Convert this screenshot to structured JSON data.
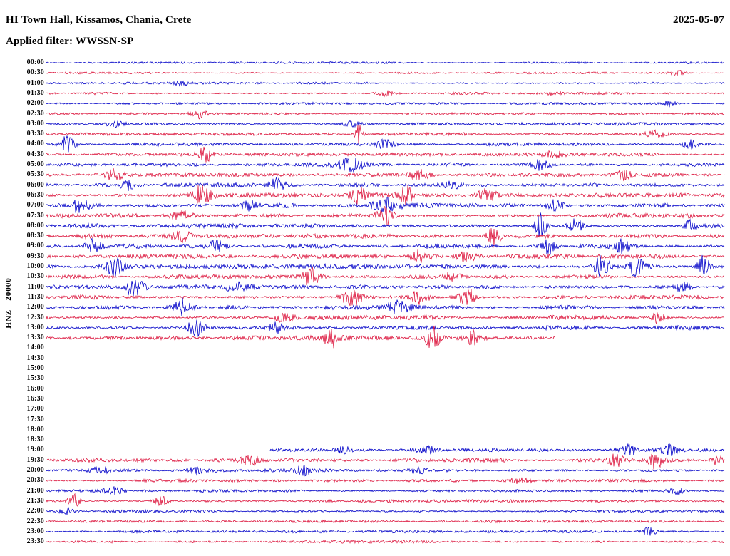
{
  "header": {
    "station_title": "HI Town Hall, Kissamos, Chania, Crete",
    "date": "2025-05-07",
    "filter_label": "Applied filter: WWSSN-SP"
  },
  "colors": {
    "trace_blue": "#0000c8",
    "trace_red": "#dc143c",
    "text": "#000000",
    "background": "#ffffff"
  },
  "chart_data": {
    "type": "line",
    "subtype": "helicorder-seismogram-dayplot",
    "title": "HI Town Hall, Kissamos, Chania, Crete",
    "date": "2025-05-07",
    "filter": "WWSSN-SP",
    "channel": "HNZ",
    "scale": "20000",
    "ylabel": "HNZ - 20000",
    "xlabel": "",
    "row_interval_minutes": 30,
    "legend": "alternating blue/red traces, one row per 30 minutes; blank rows 14:00-18:30 indicate no data",
    "rows": [
      {
        "time": "00:00",
        "color": "blue",
        "start": 0,
        "end": 1,
        "noise": 0.9,
        "bursts": []
      },
      {
        "time": "00:30",
        "color": "red",
        "start": 0,
        "end": 1,
        "noise": 0.9,
        "bursts": [
          [
            0.93,
            1.5,
            0.008
          ]
        ]
      },
      {
        "time": "01:00",
        "color": "blue",
        "start": 0,
        "end": 1,
        "noise": 1.0,
        "bursts": [
          [
            0.2,
            1.2,
            0.01
          ]
        ]
      },
      {
        "time": "01:30",
        "color": "red",
        "start": 0,
        "end": 1,
        "noise": 1.1,
        "bursts": [
          [
            0.5,
            1.5,
            0.01
          ],
          [
            0.75,
            1.2,
            0.01
          ]
        ]
      },
      {
        "time": "02:00",
        "color": "blue",
        "start": 0,
        "end": 1,
        "noise": 1.0,
        "bursts": [
          [
            0.92,
            2.5,
            0.006
          ]
        ]
      },
      {
        "time": "02:30",
        "color": "red",
        "start": 0,
        "end": 1,
        "noise": 1.1,
        "bursts": [
          [
            0.225,
            3.5,
            0.006
          ]
        ]
      },
      {
        "time": "03:00",
        "color": "blue",
        "start": 0,
        "end": 1,
        "noise": 1.3,
        "bursts": [
          [
            0.1,
            1.5,
            0.01
          ],
          [
            0.45,
            1.5,
            0.01
          ]
        ]
      },
      {
        "time": "03:30",
        "color": "red",
        "start": 0,
        "end": 1,
        "noise": 1.3,
        "bursts": [
          [
            0.46,
            5,
            0.005
          ],
          [
            0.9,
            2,
            0.01
          ]
        ]
      },
      {
        "time": "04:00",
        "color": "blue",
        "start": 0,
        "end": 1,
        "noise": 1.5,
        "bursts": [
          [
            0.03,
            4,
            0.008
          ],
          [
            0.5,
            2,
            0.01
          ],
          [
            0.95,
            2,
            0.008
          ]
        ]
      },
      {
        "time": "04:30",
        "color": "red",
        "start": 0,
        "end": 1,
        "noise": 1.5,
        "bursts": [
          [
            0.235,
            3.5,
            0.007
          ],
          [
            0.75,
            1.5,
            0.01
          ]
        ]
      },
      {
        "time": "05:00",
        "color": "blue",
        "start": 0,
        "end": 1,
        "noise": 1.9,
        "bursts": [
          [
            0.45,
            2.5,
            0.012
          ],
          [
            0.73,
            2,
            0.01
          ]
        ]
      },
      {
        "time": "05:30",
        "color": "red",
        "start": 0,
        "end": 1,
        "noise": 1.9,
        "bursts": [
          [
            0.1,
            2,
            0.01
          ],
          [
            0.55,
            2,
            0.012
          ],
          [
            0.85,
            2,
            0.01
          ]
        ]
      },
      {
        "time": "06:00",
        "color": "blue",
        "start": 0,
        "end": 1,
        "noise": 1.9,
        "bursts": [
          [
            0.12,
            2.5,
            0.008
          ],
          [
            0.34,
            2.5,
            0.008
          ],
          [
            0.6,
            1.5,
            0.01
          ]
        ]
      },
      {
        "time": "06:30",
        "color": "red",
        "start": 0,
        "end": 1,
        "noise": 2.0,
        "bursts": [
          [
            0.23,
            4,
            0.01
          ],
          [
            0.46,
            3.5,
            0.008
          ],
          [
            0.53,
            3.5,
            0.008
          ],
          [
            0.65,
            2.5,
            0.01
          ]
        ]
      },
      {
        "time": "07:00",
        "color": "blue",
        "start": 0,
        "end": 1,
        "noise": 2.2,
        "bursts": [
          [
            0.05,
            2.5,
            0.01
          ],
          [
            0.3,
            2,
            0.01
          ],
          [
            0.5,
            2.5,
            0.012
          ],
          [
            0.75,
            2,
            0.01
          ]
        ]
      },
      {
        "time": "07:30",
        "color": "red",
        "start": 0,
        "end": 1,
        "noise": 2.0,
        "bursts": [
          [
            0.2,
            1.5,
            0.01
          ],
          [
            0.5,
            4,
            0.008
          ]
        ]
      },
      {
        "time": "08:00",
        "color": "blue",
        "start": 0,
        "end": 1,
        "noise": 2.0,
        "bursts": [
          [
            0.73,
            5,
            0.006
          ],
          [
            0.78,
            3,
            0.008
          ],
          [
            0.95,
            2.5,
            0.006
          ]
        ]
      },
      {
        "time": "08:30",
        "color": "red",
        "start": 0,
        "end": 1,
        "noise": 2.0,
        "bursts": [
          [
            0.2,
            2,
            0.01
          ],
          [
            0.66,
            4.5,
            0.007
          ]
        ]
      },
      {
        "time": "09:00",
        "color": "blue",
        "start": 0,
        "end": 1,
        "noise": 2.0,
        "bursts": [
          [
            0.07,
            2.5,
            0.008
          ],
          [
            0.25,
            2,
            0.01
          ],
          [
            0.74,
            3.5,
            0.008
          ],
          [
            0.85,
            2.5,
            0.008
          ]
        ]
      },
      {
        "time": "09:30",
        "color": "red",
        "start": 0,
        "end": 1,
        "noise": 2.0,
        "bursts": [
          [
            0.55,
            2.5,
            0.01
          ],
          [
            0.62,
            2,
            0.01
          ]
        ]
      },
      {
        "time": "10:00",
        "color": "blue",
        "start": 0,
        "end": 1,
        "noise": 2.2,
        "bursts": [
          [
            0.1,
            3,
            0.008
          ],
          [
            0.82,
            4.5,
            0.008
          ],
          [
            0.87,
            3.5,
            0.008
          ],
          [
            0.97,
            5,
            0.006
          ]
        ]
      },
      {
        "time": "10:30",
        "color": "red",
        "start": 0,
        "end": 1,
        "noise": 2.0,
        "bursts": [
          [
            0.39,
            4,
            0.008
          ],
          [
            0.6,
            2,
            0.01
          ]
        ]
      },
      {
        "time": "11:00",
        "color": "blue",
        "start": 0,
        "end": 1,
        "noise": 2.0,
        "bursts": [
          [
            0.13,
            4,
            0.01
          ],
          [
            0.28,
            2,
            0.01
          ],
          [
            0.94,
            2.5,
            0.008
          ]
        ]
      },
      {
        "time": "11:30",
        "color": "red",
        "start": 0,
        "end": 1,
        "noise": 2.2,
        "bursts": [
          [
            0.45,
            3.5,
            0.01
          ],
          [
            0.55,
            3,
            0.01
          ],
          [
            0.62,
            3,
            0.01
          ]
        ]
      },
      {
        "time": "12:00",
        "color": "blue",
        "start": 0,
        "end": 1,
        "noise": 2.0,
        "bursts": [
          [
            0.2,
            3.5,
            0.01
          ],
          [
            0.52,
            2.5,
            0.01
          ]
        ]
      },
      {
        "time": "12:30",
        "color": "red",
        "start": 0,
        "end": 1,
        "noise": 1.9,
        "bursts": [
          [
            0.35,
            2,
            0.01
          ],
          [
            0.9,
            2.5,
            0.008
          ]
        ]
      },
      {
        "time": "13:00",
        "color": "blue",
        "start": 0,
        "end": 1,
        "noise": 1.9,
        "bursts": [
          [
            0.22,
            4,
            0.008
          ],
          [
            0.34,
            2.5,
            0.01
          ]
        ]
      },
      {
        "time": "13:30",
        "color": "red",
        "start": 0,
        "end": 0.75,
        "noise": 2.0,
        "bursts": [
          [
            0.42,
            4,
            0.008
          ],
          [
            0.57,
            4.5,
            0.008
          ],
          [
            0.63,
            3,
            0.008
          ]
        ]
      },
      {
        "time": "14:00",
        "color": "blue",
        "start": 0,
        "end": 0,
        "noise": 0,
        "bursts": []
      },
      {
        "time": "14:30",
        "color": "red",
        "start": 0,
        "end": 0,
        "noise": 0,
        "bursts": []
      },
      {
        "time": "15:00",
        "color": "blue",
        "start": 0,
        "end": 0,
        "noise": 0,
        "bursts": []
      },
      {
        "time": "15:30",
        "color": "red",
        "start": 0,
        "end": 0,
        "noise": 0,
        "bursts": []
      },
      {
        "time": "16:00",
        "color": "blue",
        "start": 0,
        "end": 0,
        "noise": 0,
        "bursts": []
      },
      {
        "time": "16:30",
        "color": "red",
        "start": 0,
        "end": 0,
        "noise": 0,
        "bursts": []
      },
      {
        "time": "17:00",
        "color": "blue",
        "start": 0,
        "end": 0,
        "noise": 0,
        "bursts": []
      },
      {
        "time": "17:30",
        "color": "red",
        "start": 0,
        "end": 0,
        "noise": 0,
        "bursts": []
      },
      {
        "time": "18:00",
        "color": "blue",
        "start": 0,
        "end": 0,
        "noise": 0,
        "bursts": []
      },
      {
        "time": "18:30",
        "color": "red",
        "start": 0,
        "end": 0,
        "noise": 0,
        "bursts": []
      },
      {
        "time": "19:00",
        "color": "blue",
        "start": 0.33,
        "end": 1,
        "noise": 1.4,
        "bursts": [
          [
            0.44,
            2,
            0.008
          ],
          [
            0.56,
            1.5,
            0.01
          ],
          [
            0.86,
            2.5,
            0.008
          ],
          [
            0.92,
            2.5,
            0.008
          ]
        ]
      },
      {
        "time": "19:30",
        "color": "red",
        "start": 0,
        "end": 1,
        "noise": 1.6,
        "bursts": [
          [
            0.3,
            2,
            0.01
          ],
          [
            0.84,
            2.5,
            0.008
          ],
          [
            0.9,
            4,
            0.008
          ],
          [
            0.99,
            3,
            0.006
          ]
        ]
      },
      {
        "time": "20:00",
        "color": "blue",
        "start": 0,
        "end": 1,
        "noise": 1.4,
        "bursts": [
          [
            0.08,
            4,
            0.006
          ],
          [
            0.22,
            2,
            0.008
          ],
          [
            0.38,
            2.5,
            0.008
          ],
          [
            0.55,
            1.5,
            0.01
          ]
        ]
      },
      {
        "time": "20:30",
        "color": "red",
        "start": 0,
        "end": 1,
        "noise": 1.3,
        "bursts": [
          [
            0.7,
            1.5,
            0.01
          ]
        ]
      },
      {
        "time": "21:00",
        "color": "blue",
        "start": 0,
        "end": 1,
        "noise": 1.3,
        "bursts": [
          [
            0.1,
            1.5,
            0.01
          ],
          [
            0.93,
            2,
            0.008
          ]
        ]
      },
      {
        "time": "21:30",
        "color": "red",
        "start": 0,
        "end": 1,
        "noise": 1.4,
        "bursts": [
          [
            0.04,
            4,
            0.006
          ],
          [
            0.17,
            2,
            0.008
          ]
        ]
      },
      {
        "time": "22:00",
        "color": "blue",
        "start": 0,
        "end": 1,
        "noise": 1.3,
        "bursts": [
          [
            0.03,
            2,
            0.008
          ]
        ]
      },
      {
        "time": "22:30",
        "color": "red",
        "start": 0,
        "end": 1,
        "noise": 1.2,
        "bursts": []
      },
      {
        "time": "23:00",
        "color": "blue",
        "start": 0,
        "end": 1,
        "noise": 1.2,
        "bursts": [
          [
            0.89,
            2,
            0.008
          ]
        ]
      },
      {
        "time": "23:30",
        "color": "red",
        "start": 0,
        "end": 1,
        "noise": 1.2,
        "bursts": []
      }
    ]
  }
}
